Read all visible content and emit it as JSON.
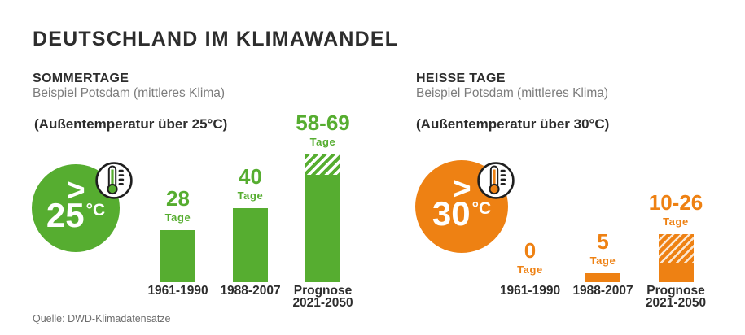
{
  "page": {
    "title": "DEUTSCHLAND IM KLIMAWANDEL",
    "source": "Quelle: DWD-Klimadatensätze"
  },
  "colors": {
    "green": "#56ad30",
    "orange": "#ee8113",
    "dark": "#2d2d2d",
    "gray": "#7c7c7c",
    "source_gray": "#6d6d6d",
    "divider": "#d9d9d9"
  },
  "panels": [
    {
      "heading": "SOMMERTAGE",
      "subheading": "Beispiel Potsdam (mittleres Klima)",
      "condition": "(Außentemperatur über 25°C)",
      "badge": {
        "symbol": ">",
        "value": "25",
        "unit": "°C"
      },
      "icon": "thermometer-icon"
    },
    {
      "heading": "HEISSE TAGE",
      "subheading": "Beispiel Potsdam (mittleres Klima)",
      "condition": "(Außentemperatur über 30°C)",
      "badge": {
        "symbol": ">",
        "value": "30",
        "unit": "°C"
      },
      "icon": "thermometer-icon"
    }
  ],
  "chart_data": [
    {
      "type": "bar",
      "title": "Sommertage – Beispiel Potsdam (mittleres Klima)",
      "note": "Außentemperatur über 25°C",
      "unit": "Tage",
      "ylim": [
        0,
        70
      ],
      "bar_color": "#56ad30",
      "hatch_segment_meaning": "Spannbreite der Prognose",
      "categories": [
        "1961-1990",
        "1988-2007",
        "Prognose 2021-2050"
      ],
      "values": [
        28,
        40,
        [
          58,
          69
        ]
      ],
      "bars": [
        {
          "value_label": "28",
          "unit_label": "Tage",
          "solid": 28,
          "max": 28,
          "category": "1961-1990"
        },
        {
          "value_label": "40",
          "unit_label": "Tage",
          "solid": 40,
          "max": 40,
          "category": "1988-2007"
        },
        {
          "value_label": "58-69",
          "unit_label": "Tage",
          "solid": 58,
          "max": 69,
          "category": "Prognose\n2021-2050"
        }
      ]
    },
    {
      "type": "bar",
      "title": "Heisse Tage – Beispiel Potsdam (mittleres Klima)",
      "note": "Außentemperatur über 30°C",
      "unit": "Tage",
      "ylim": [
        0,
        70
      ],
      "bar_color": "#ee8113",
      "hatch_segment_meaning": "Spannbreite der Prognose",
      "categories": [
        "1961-1990",
        "1988-2007",
        "Prognose 2021-2050"
      ],
      "values": [
        0,
        5,
        [
          10,
          26
        ]
      ],
      "bars": [
        {
          "value_label": "0",
          "unit_label": "Tage",
          "solid": 0,
          "max": 0,
          "category": "1961-1990"
        },
        {
          "value_label": "5",
          "unit_label": "Tage",
          "solid": 5,
          "max": 5,
          "category": "1988-2007"
        },
        {
          "value_label": "10-26",
          "unit_label": "Tage",
          "solid": 10,
          "max": 26,
          "category": "Prognose\n2021-2050"
        }
      ]
    }
  ]
}
